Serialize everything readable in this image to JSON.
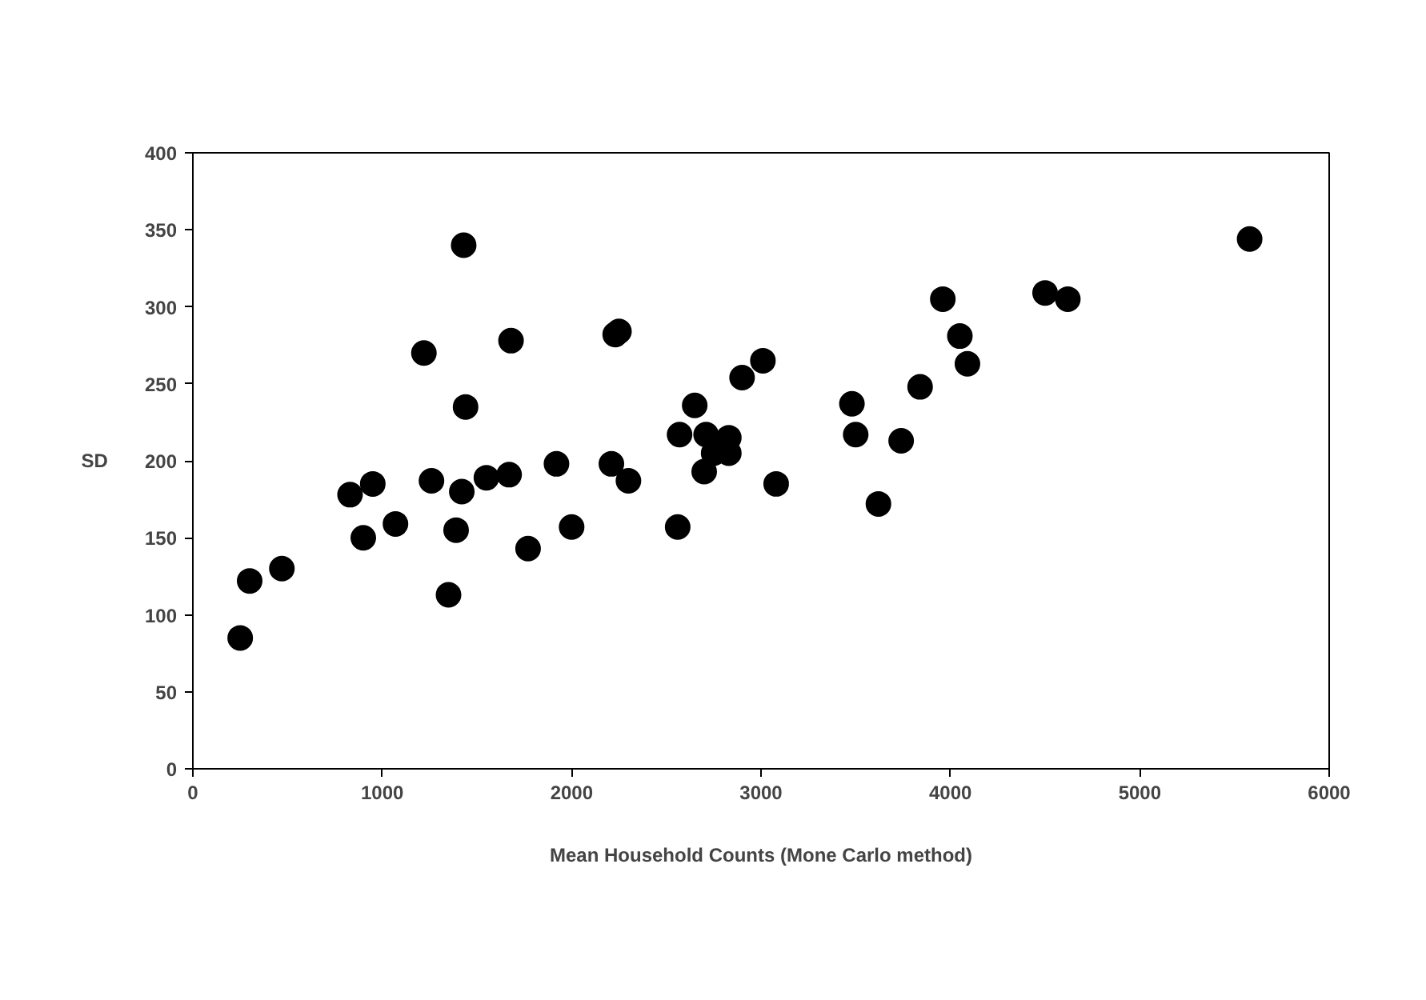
{
  "chart_data": {
    "type": "scatter",
    "xlabel": "Mean Household Counts (Mone Carlo method)",
    "ylabel": "SD",
    "x": [
      250,
      300,
      470,
      830,
      900,
      950,
      1070,
      1220,
      1260,
      1350,
      1390,
      1420,
      1430,
      1440,
      1550,
      1670,
      1680,
      1770,
      1920,
      2000,
      2210,
      2230,
      2250,
      2300,
      2560,
      2570,
      2650,
      2700,
      2710,
      2750,
      2830,
      2830,
      2900,
      3010,
      3080,
      3480,
      3500,
      3620,
      3740,
      3840,
      3960,
      4050,
      4090,
      4500,
      4620,
      5580
    ],
    "series": [
      {
        "color": "#000000",
        "values": [
          85,
          122,
          130,
          178,
          150,
          185,
          159,
          270,
          187,
          113,
          155,
          180,
          340,
          235,
          189,
          191,
          278,
          143,
          198,
          157,
          198,
          282,
          284,
          187,
          157,
          217,
          236,
          193,
          217,
          205,
          215,
          205,
          254,
          265,
          185,
          237,
          217,
          172,
          213,
          248,
          305,
          281,
          263,
          309,
          305,
          344
        ]
      }
    ],
    "xlim": [
      0,
      6000
    ],
    "xticks": [
      0,
      1000,
      2000,
      3000,
      4000,
      5000,
      6000
    ],
    "ylim": [
      0,
      400
    ],
    "yticks": [
      0,
      50,
      100,
      150,
      200,
      250,
      300,
      350,
      400
    ],
    "grid": false,
    "marker": "circle"
  }
}
